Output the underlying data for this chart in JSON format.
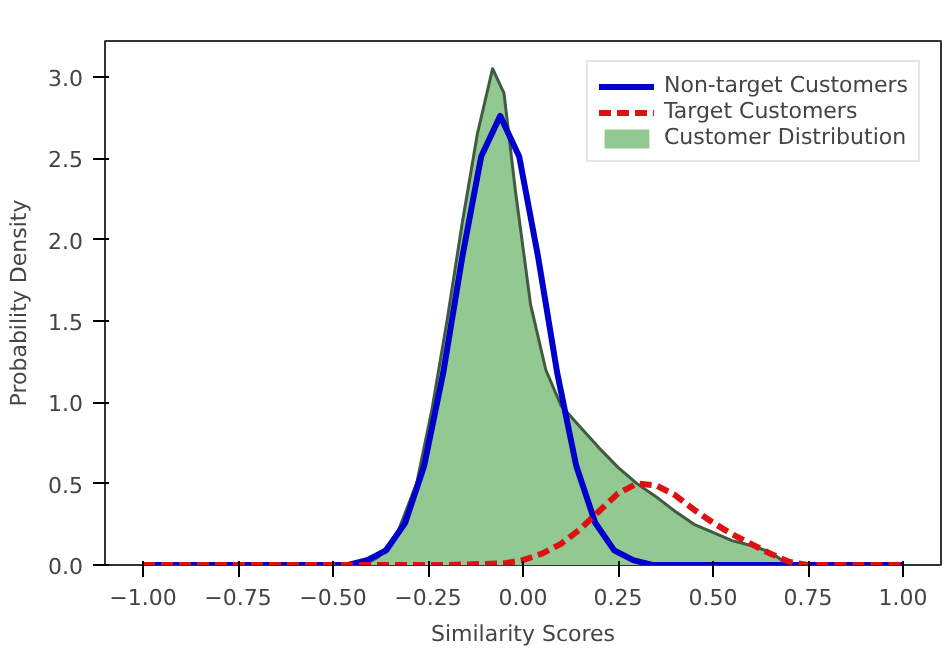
{
  "chart_data": {
    "type": "line",
    "xlabel": "Similarity Scores",
    "ylabel": "Probability Density",
    "xlim": [
      -1.1,
      1.1
    ],
    "ylim": [
      0,
      3.22
    ],
    "xticks": [
      {
        "value": -1,
        "label": "−1.00"
      },
      {
        "value": -0.75,
        "label": "−0.75"
      },
      {
        "value": -0.5,
        "label": "−0.50"
      },
      {
        "value": -0.25,
        "label": "−0.25"
      },
      {
        "value": 0,
        "label": "0.00"
      },
      {
        "value": 0.25,
        "label": "0.25"
      },
      {
        "value": 0.5,
        "label": "0.50"
      },
      {
        "value": 0.75,
        "label": "0.75"
      },
      {
        "value": 1,
        "label": "1.00"
      }
    ],
    "yticks": [
      {
        "value": 0,
        "label": "0.0"
      },
      {
        "value": 0.5,
        "label": "0.5"
      },
      {
        "value": 1,
        "label": "1.0"
      },
      {
        "value": 1.5,
        "label": "1.5"
      },
      {
        "value": 2,
        "label": "2.0"
      },
      {
        "value": 2.5,
        "label": "2.5"
      },
      {
        "value": 3,
        "label": "3.0"
      }
    ],
    "grid": false,
    "legend": "top right",
    "series": [
      {
        "name": "Customer Distribution",
        "type": "area",
        "color": "#92c892",
        "x": [
          -0.42,
          -0.38,
          -0.33,
          -0.28,
          -0.24,
          -0.2,
          -0.16,
          -0.12,
          -0.08,
          -0.05,
          -0.02,
          0.02,
          0.06,
          0.1,
          0.15,
          0.2,
          0.25,
          0.3,
          0.35,
          0.4,
          0.45,
          0.5,
          0.55,
          0.6,
          0.65,
          0.7
        ],
        "values": [
          0,
          0.05,
          0.2,
          0.5,
          0.95,
          1.5,
          2.1,
          2.65,
          3.05,
          2.9,
          2.3,
          1.6,
          1.2,
          0.98,
          0.85,
          0.72,
          0.6,
          0.5,
          0.42,
          0.33,
          0.25,
          0.2,
          0.15,
          0.12,
          0.08,
          0
        ]
      },
      {
        "name": "Non-target Customers",
        "color": "#0000cc",
        "line_style": "solid",
        "x": [
          -1,
          -0.46,
          -0.41,
          -0.36,
          -0.31,
          -0.26,
          -0.21,
          -0.16,
          -0.11,
          -0.06,
          -0.01,
          0.04,
          0.09,
          0.14,
          0.19,
          0.24,
          0.29,
          0.34,
          1
        ],
        "values": [
          0,
          0,
          0.03,
          0.09,
          0.26,
          0.61,
          1.18,
          1.89,
          2.51,
          2.76,
          2.51,
          1.89,
          1.18,
          0.61,
          0.26,
          0.09,
          0.03,
          0,
          0
        ]
      },
      {
        "name": "Target Customers",
        "color": "#dd1111",
        "line_style": "dashed",
        "x": [
          -1,
          -0.2,
          -0.05,
          0,
          0.05,
          0.1,
          0.15,
          0.2,
          0.25,
          0.3,
          0.35,
          0.4,
          0.45,
          0.5,
          0.55,
          0.6,
          0.65,
          0.7,
          0.75,
          1
        ],
        "values": [
          0,
          0,
          0.01,
          0.03,
          0.07,
          0.13,
          0.22,
          0.33,
          0.44,
          0.5,
          0.49,
          0.43,
          0.34,
          0.26,
          0.19,
          0.13,
          0.07,
          0.02,
          0,
          0
        ]
      }
    ]
  }
}
